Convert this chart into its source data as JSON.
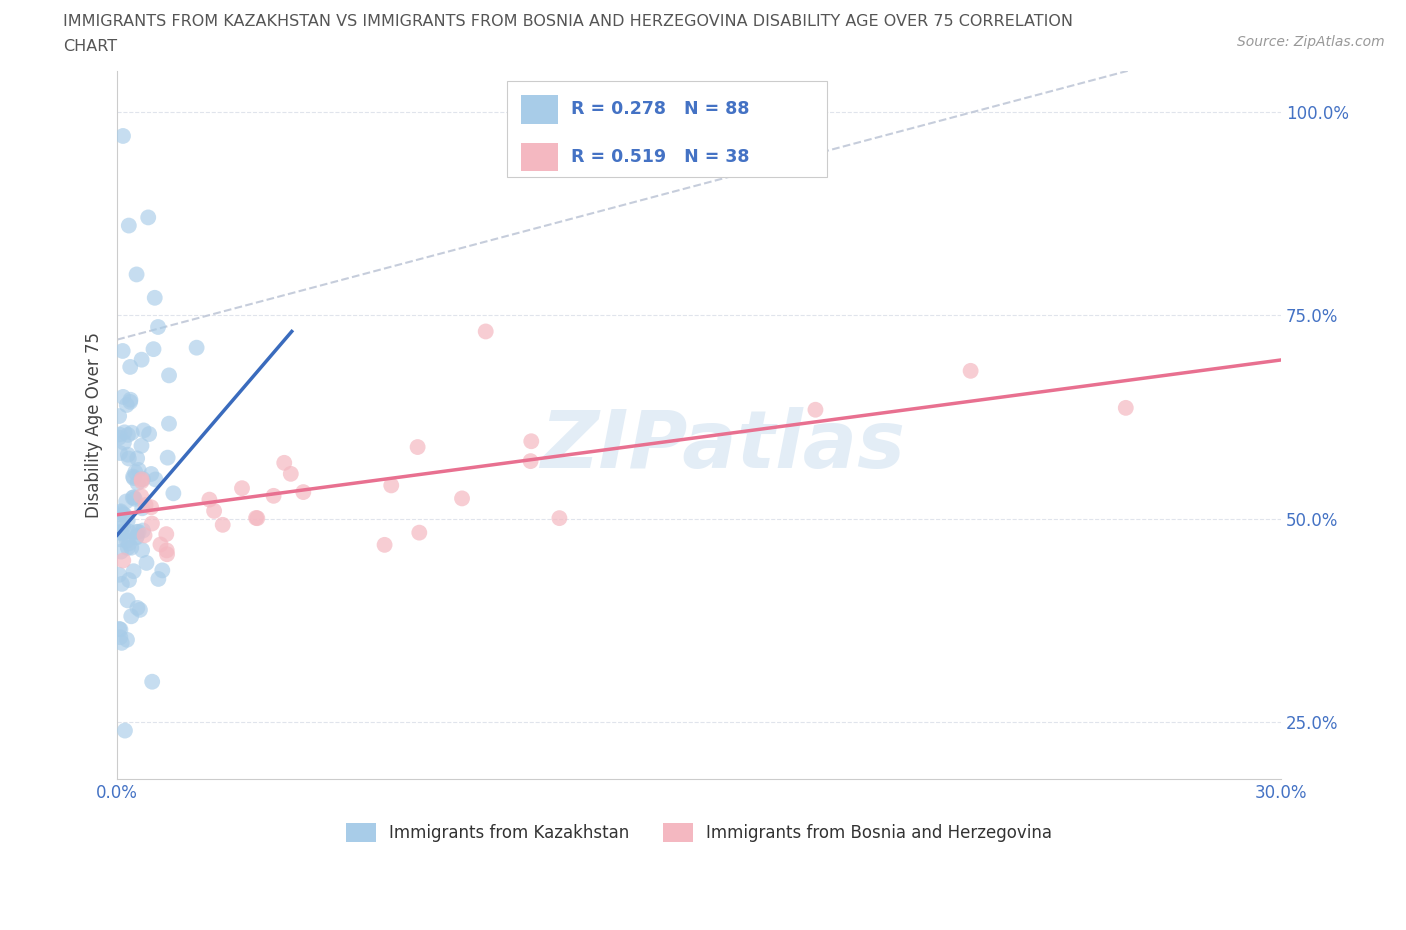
{
  "title_line1": "IMMIGRANTS FROM KAZAKHSTAN VS IMMIGRANTS FROM BOSNIA AND HERZEGOVINA DISABILITY AGE OVER 75 CORRELATION",
  "title_line2": "CHART",
  "source_text": "Source: ZipAtlas.com",
  "ylabel": "Disability Age Over 75",
  "watermark": "ZIPatlas",
  "kaz_R": 0.278,
  "kaz_N": 88,
  "bih_R": 0.519,
  "bih_N": 38,
  "kaz_color": "#a8cce8",
  "bih_color": "#f4b8c1",
  "kaz_trend_color": "#3a6bbd",
  "bih_trend_color": "#e87090",
  "diag_color": "#c0c8d8",
  "legend_kaz_label": "Immigrants from Kazakhstan",
  "legend_bih_label": "Immigrants from Bosnia and Herzegovina",
  "xmin": 0.0,
  "xmax": 0.3,
  "ymin": 0.18,
  "ymax": 1.05,
  "grid_color": "#e0e4ec",
  "tick_color": "#4472c4",
  "title_color": "#555555",
  "source_color": "#999999",
  "ylabel_color": "#444444"
}
